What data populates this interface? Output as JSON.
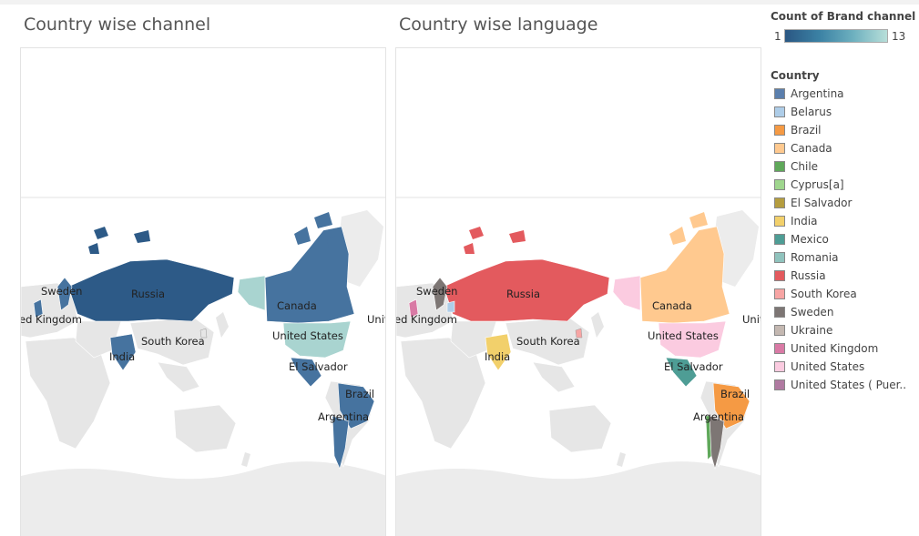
{
  "sheets": [
    {
      "title": "Country wise channel"
    },
    {
      "title": "Country wise language"
    }
  ],
  "map_labels": {
    "sweden": "Sweden",
    "russia": "Russia",
    "united_kingdom": "United Kingdom",
    "canada": "Canada",
    "united_states": "United States",
    "south_korea": "South Korea",
    "india": "India",
    "el_salvador": "El Salvador",
    "brazil": "Brazil",
    "argentina": "Argentina"
  },
  "gradient_legend": {
    "title": "Count of Brand channel",
    "min": "1",
    "max": "13"
  },
  "country_legend": {
    "title": "Country",
    "items": [
      {
        "label": "Argentina",
        "color": "#5b7fad"
      },
      {
        "label": "Belarus",
        "color": "#aecde8"
      },
      {
        "label": "Brazil",
        "color": "#f59a44"
      },
      {
        "label": "Canada",
        "color": "#ffc98f"
      },
      {
        "label": "Chile",
        "color": "#5fa85a"
      },
      {
        "label": "Cyprus[a]",
        "color": "#9fd68e"
      },
      {
        "label": "El Salvador",
        "color": "#b59d3f"
      },
      {
        "label": "India",
        "color": "#f2d06b"
      },
      {
        "label": "Mexico",
        "color": "#4e9d95"
      },
      {
        "label": "Romania",
        "color": "#90c3bd"
      },
      {
        "label": "Russia",
        "color": "#e35a5e"
      },
      {
        "label": "South Korea",
        "color": "#f7a5a4"
      },
      {
        "label": "Sweden",
        "color": "#7d7674"
      },
      {
        "label": "Ukraine",
        "color": "#c4b8b1"
      },
      {
        "label": "United Kingdom",
        "color": "#d97aa5"
      },
      {
        "label": "United States",
        "color": "#fbcbe0"
      },
      {
        "label": "United States ( Puer..",
        "color": "#b07aa1"
      }
    ]
  },
  "channel_colors": {
    "high": "#2d5a87",
    "mid": "#46739f",
    "low": "#a9d4d0",
    "base": "#e6e6e6",
    "border": "#ffffff",
    "ocean": "#ffffff",
    "antarctica": "#ececec"
  },
  "partial_labels": {
    "united_kingdom_cut": "ed Kingdom",
    "united_states_cut": "Unit"
  }
}
